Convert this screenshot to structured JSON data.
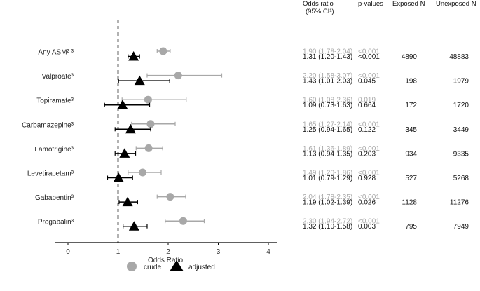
{
  "chart_data": {
    "type": "scatter",
    "subtype": "forest-plot",
    "xlabel": "Odds Ratio",
    "xlim": [
      -0.4,
      4.2
    ],
    "xticks": [
      "0",
      "1",
      "2",
      "3",
      "4"
    ],
    "xtick_values": [
      0,
      1,
      2,
      3,
      4
    ],
    "reference_line": 1,
    "legend": {
      "position": "bottom-center",
      "entries": [
        "crude",
        "adjusted"
      ]
    },
    "columns": {
      "or": "Odds ratio",
      "or_sub": "(95% CI¹)",
      "p": "p-values",
      "exposed": "Exposed N",
      "unexposed": "Unexposed N"
    },
    "rows": [
      {
        "label": "Any ASM² ³",
        "crude": {
          "or": 1.9,
          "lo": 1.78,
          "hi": 2.04,
          "text": "1.90 (1.78-2.04)",
          "p": "<0.001"
        },
        "adjusted": {
          "or": 1.31,
          "lo": 1.2,
          "hi": 1.43,
          "text": "1.31 (1.20-1.43)",
          "p": "<0.001"
        },
        "exposed": "4890",
        "unexposed": "48883"
      },
      {
        "label": "Valproate³",
        "crude": {
          "or": 2.2,
          "lo": 1.58,
          "hi": 3.07,
          "text": "2.20 (1.58-3.07)",
          "p": "<0.001"
        },
        "adjusted": {
          "or": 1.43,
          "lo": 1.01,
          "hi": 2.03,
          "text": "1.43 (1.01-2.03)",
          "p": "0.045"
        },
        "exposed": "198",
        "unexposed": "1979"
      },
      {
        "label": "Topiramate³",
        "crude": {
          "or": 1.6,
          "lo": 1.08,
          "hi": 2.36,
          "text": "1.60 (1.08-2.36)",
          "p": "0.019"
        },
        "adjusted": {
          "or": 1.09,
          "lo": 0.73,
          "hi": 1.63,
          "text": "1.09 (0.73-1.63)",
          "p": "0.664"
        },
        "exposed": "172",
        "unexposed": "1720"
      },
      {
        "label": "Carbamazepine³",
        "crude": {
          "or": 1.65,
          "lo": 1.27,
          "hi": 2.14,
          "text": "1.65 (1.27-2.14)",
          "p": "<0.001"
        },
        "adjusted": {
          "or": 1.25,
          "lo": 0.94,
          "hi": 1.65,
          "text": "1.25 (0.94-1.65)",
          "p": "0.122"
        },
        "exposed": "345",
        "unexposed": "3449"
      },
      {
        "label": "Lamotrigine³",
        "crude": {
          "or": 1.61,
          "lo": 1.36,
          "hi": 1.89,
          "text": "1.61 (1.36-1.89)",
          "p": "<0.001"
        },
        "adjusted": {
          "or": 1.13,
          "lo": 0.94,
          "hi": 1.35,
          "text": "1.13 (0.94-1.35)",
          "p": "0.203"
        },
        "exposed": "934",
        "unexposed": "9335"
      },
      {
        "label": "Levetiracetam³",
        "crude": {
          "or": 1.49,
          "lo": 1.2,
          "hi": 1.86,
          "text": "1.49 (1.20-1.86)",
          "p": "<0.001"
        },
        "adjusted": {
          "or": 1.01,
          "lo": 0.79,
          "hi": 1.29,
          "text": "1.01 (0.79-1.29)",
          "p": "0.928"
        },
        "exposed": "527",
        "unexposed": "5268"
      },
      {
        "label": "Gabapentin³",
        "crude": {
          "or": 2.04,
          "lo": 1.78,
          "hi": 2.35,
          "text": "2.04 (1.78-2.35)",
          "p": "<0.001"
        },
        "adjusted": {
          "or": 1.19,
          "lo": 1.02,
          "hi": 1.39,
          "text": "1.19 (1.02-1.39)",
          "p": "0.026"
        },
        "exposed": "1128",
        "unexposed": "11276"
      },
      {
        "label": "Pregabalin³",
        "crude": {
          "or": 2.3,
          "lo": 1.94,
          "hi": 2.72,
          "text": "2.30 (1.94-2.72)",
          "p": "<0.001"
        },
        "adjusted": {
          "or": 1.32,
          "lo": 1.1,
          "hi": 1.58,
          "text": "1.32 (1.10-1.58)",
          "p": "0.003"
        },
        "exposed": "795",
        "unexposed": "7949"
      }
    ],
    "colors": {
      "crude": "#a8a8a8",
      "adjusted": "#000000",
      "crude_text": "#aaaaaa",
      "axis": "#000000"
    }
  }
}
